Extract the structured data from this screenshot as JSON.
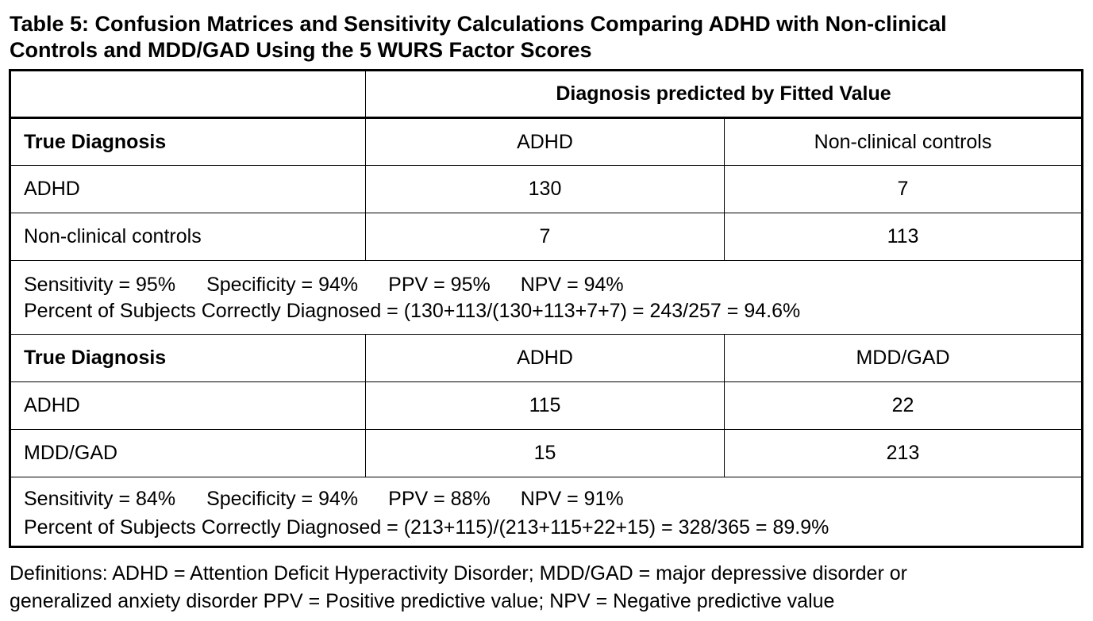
{
  "title": {
    "line1": "Table 5: Confusion Matrices and Sensitivity Calculations Comparing ADHD with Non-clinical",
    "line2": "Controls and MDD/GAD Using the 5 WURS Factor Scores"
  },
  "table": {
    "header": "Diagnosis predicted by Fitted Value",
    "block1": {
      "row_header": "True Diagnosis",
      "col1": "ADHD",
      "col2": "Non-clinical controls",
      "rows": [
        {
          "label": "ADHD",
          "v1": "130",
          "v2": "7"
        },
        {
          "label": "Non-clinical controls",
          "v1": "7",
          "v2": "113"
        }
      ],
      "stats": {
        "sensitivity": "Sensitivity = 95%",
        "specificity": "Specificity = 94%",
        "ppv": "PPV = 95%",
        "npv": "NPV = 94%",
        "percent": "Percent of Subjects Correctly Diagnosed = (130+113/(130+113+7+7) = 243/257 = 94.6%"
      }
    },
    "block2": {
      "row_header": "True Diagnosis",
      "col1": "ADHD",
      "col2": "MDD/GAD",
      "rows": [
        {
          "label": "ADHD",
          "v1": "115",
          "v2": "22"
        },
        {
          "label": "MDD/GAD",
          "v1": "15",
          "v2": "213"
        }
      ],
      "stats": {
        "sensitivity": "Sensitivity = 84%",
        "specificity": "Specificity = 94%",
        "ppv": "PPV = 88%",
        "npv": "NPV = 91%",
        "percent": "Percent of Subjects Correctly Diagnosed = (213+115)/(213+115+22+15) = 328/365 = 89.9%"
      }
    }
  },
  "definitions": {
    "line1": "Definitions: ADHD = Attention Deficit Hyperactivity Disorder; MDD/GAD = major depressive disorder or",
    "line2": "generalized anxiety disorder PPV = Positive predictive value; NPV = Negative predictive value"
  }
}
